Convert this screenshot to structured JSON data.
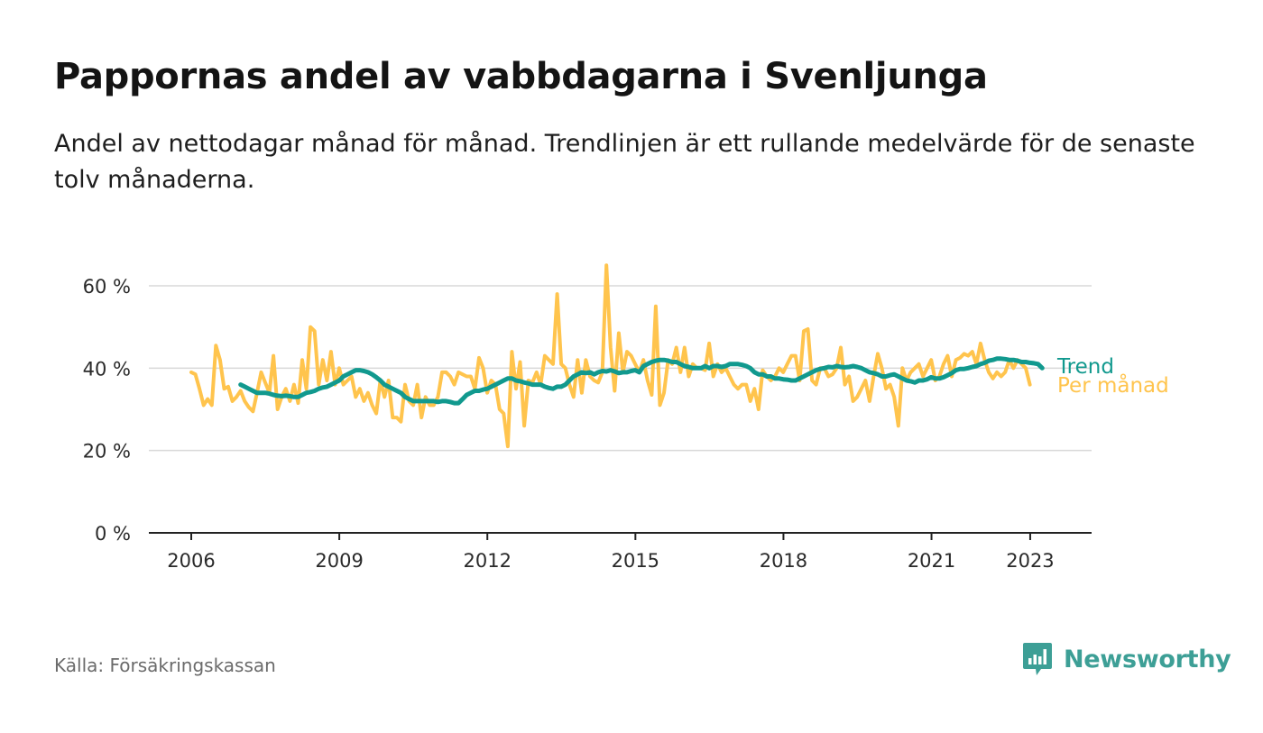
{
  "header": {
    "title": "Pappornas andel av vabbdagarna i Svenljunga",
    "subtitle": "Andel av nettodagar månad för månad. Trendlinjen är ett rullande medelvärde för de senaste tolv månaderna."
  },
  "footer": {
    "source": "Källa: Försäkringskassan",
    "brand": "Newsworthy"
  },
  "icons": {
    "brand": "newsworthy-logo-icon"
  },
  "colors": {
    "monthly": "#ffc44d",
    "trend": "#11998e",
    "grid": "#d9d9d9",
    "axis": "#222222",
    "brand": "#3d9f96"
  },
  "chart_data": {
    "type": "line",
    "x_ticks": [
      "2006",
      "2009",
      "2012",
      "2015",
      "2018",
      "2021",
      "2023"
    ],
    "x_tick_values": [
      2006.0,
      2009.0,
      2012.0,
      2015.0,
      2018.0,
      2021.0,
      2023.0
    ],
    "xlim": [
      2006.0,
      2023.33
    ],
    "y_ticks": [
      "0 %",
      "20 %",
      "40 %",
      "60 %"
    ],
    "y_tick_values": [
      0,
      20,
      40,
      60
    ],
    "ylim": [
      0,
      60
    ],
    "grid": true,
    "x_start": 2006.0,
    "x_step": 0.0833,
    "series": [
      {
        "name": "Per månad",
        "color": "#ffc44d",
        "values": [
          39,
          38.5,
          35,
          31,
          32.5,
          31,
          45.5,
          42,
          35,
          35.5,
          32,
          33,
          34.5,
          32,
          30.5,
          29.5,
          34,
          39,
          36.5,
          34,
          43,
          30,
          33,
          35,
          32,
          36,
          31.5,
          42,
          35,
          50,
          49,
          36,
          42,
          37,
          44,
          36,
          40,
          36,
          37,
          38,
          33,
          35,
          32,
          34,
          31,
          29,
          37,
          33,
          37,
          28,
          28,
          27,
          36,
          32,
          31,
          36,
          28,
          33,
          31,
          31,
          33,
          39,
          39,
          38,
          36,
          39,
          38.5,
          38,
          38,
          35,
          42.5,
          40,
          34,
          37,
          36,
          30,
          29,
          21,
          44,
          35,
          41.5,
          26,
          37,
          36.5,
          39,
          36,
          43,
          42,
          41,
          58,
          41,
          40,
          36,
          33,
          42,
          34,
          42,
          38,
          37,
          36.5,
          39,
          65,
          45,
          34.5,
          48.5,
          39,
          44,
          43,
          41,
          39,
          42,
          37,
          33.5,
          55,
          31,
          34,
          42,
          41,
          45,
          39,
          45,
          38,
          41,
          40,
          40,
          39.5,
          46,
          38,
          41,
          39,
          40,
          38,
          36,
          35,
          36,
          36,
          32,
          35,
          30,
          39.5,
          38,
          37,
          38,
          40,
          39,
          41,
          43,
          43,
          37,
          49,
          49.5,
          37,
          36,
          40,
          40,
          38,
          38.5,
          40,
          45,
          36,
          38,
          32,
          33,
          35,
          37,
          32,
          38,
          43.5,
          40,
          35,
          36,
          33,
          26,
          40,
          37,
          39,
          40,
          41,
          38,
          40,
          42,
          37,
          38,
          41,
          43,
          38,
          42,
          42.5,
          43.5,
          43,
          44,
          41,
          46,
          42,
          39,
          37.5,
          39,
          38,
          39,
          42,
          40,
          42,
          41,
          40,
          36
        ]
      },
      {
        "name": "Trend",
        "color": "#11998e",
        "start": 2007.0,
        "values": [
          36,
          35.5,
          35,
          34.5,
          34,
          34,
          34,
          33.8,
          33.5,
          33.3,
          33.2,
          33.3,
          33.2,
          33,
          33,
          33.5,
          34,
          34.2,
          34.5,
          35,
          35.3,
          35.5,
          36,
          36.5,
          37,
          38,
          38.5,
          39,
          39.5,
          39.5,
          39.3,
          39,
          38.5,
          37.8,
          37,
          36,
          35.5,
          35,
          34.5,
          34,
          33,
          32.5,
          32,
          32,
          32,
          32,
          32,
          32,
          31.8,
          32,
          32,
          31.8,
          31.5,
          31.5,
          32.5,
          33.5,
          34,
          34.5,
          34.5,
          34.8,
          35,
          35.5,
          36,
          36.5,
          37,
          37.5,
          37.5,
          37,
          36.8,
          36.5,
          36.3,
          36,
          36,
          36,
          35.5,
          35.2,
          35,
          35.5,
          35.5,
          36,
          37,
          38,
          38.5,
          39,
          38.8,
          39,
          38.5,
          39,
          39.3,
          39.2,
          39.5,
          39.2,
          38.8,
          39,
          39,
          39.3,
          39.5,
          39,
          40.5,
          41,
          41.5,
          41.8,
          42,
          42,
          41.8,
          41.5,
          41.5,
          41,
          40.5,
          40.3,
          40,
          40,
          40,
          40.5,
          40,
          40.5,
          40.5,
          40.3,
          40.5,
          41,
          41,
          41,
          40.8,
          40.5,
          40,
          39,
          38.5,
          38.5,
          38,
          38,
          37.5,
          37.5,
          37.3,
          37.2,
          37,
          37,
          37.5,
          38,
          38.5,
          39,
          39.5,
          39.8,
          40,
          40.3,
          40.2,
          40.5,
          40.3,
          40.2,
          40.3,
          40.5,
          40.3,
          40,
          39.5,
          39,
          38.8,
          38.5,
          38,
          38,
          38.3,
          38.5,
          38,
          37.5,
          37,
          36.8,
          36.5,
          37,
          37,
          37.3,
          37.8,
          37.5,
          37.5,
          37.8,
          38.3,
          38.8,
          39.5,
          39.8,
          39.8,
          40,
          40.3,
          40.5,
          41,
          41.3,
          41.8,
          42,
          42.3,
          42.3,
          42.2,
          42,
          42,
          41.8,
          41.5,
          41.5,
          41.3,
          41.2,
          41,
          40
        ]
      }
    ]
  }
}
